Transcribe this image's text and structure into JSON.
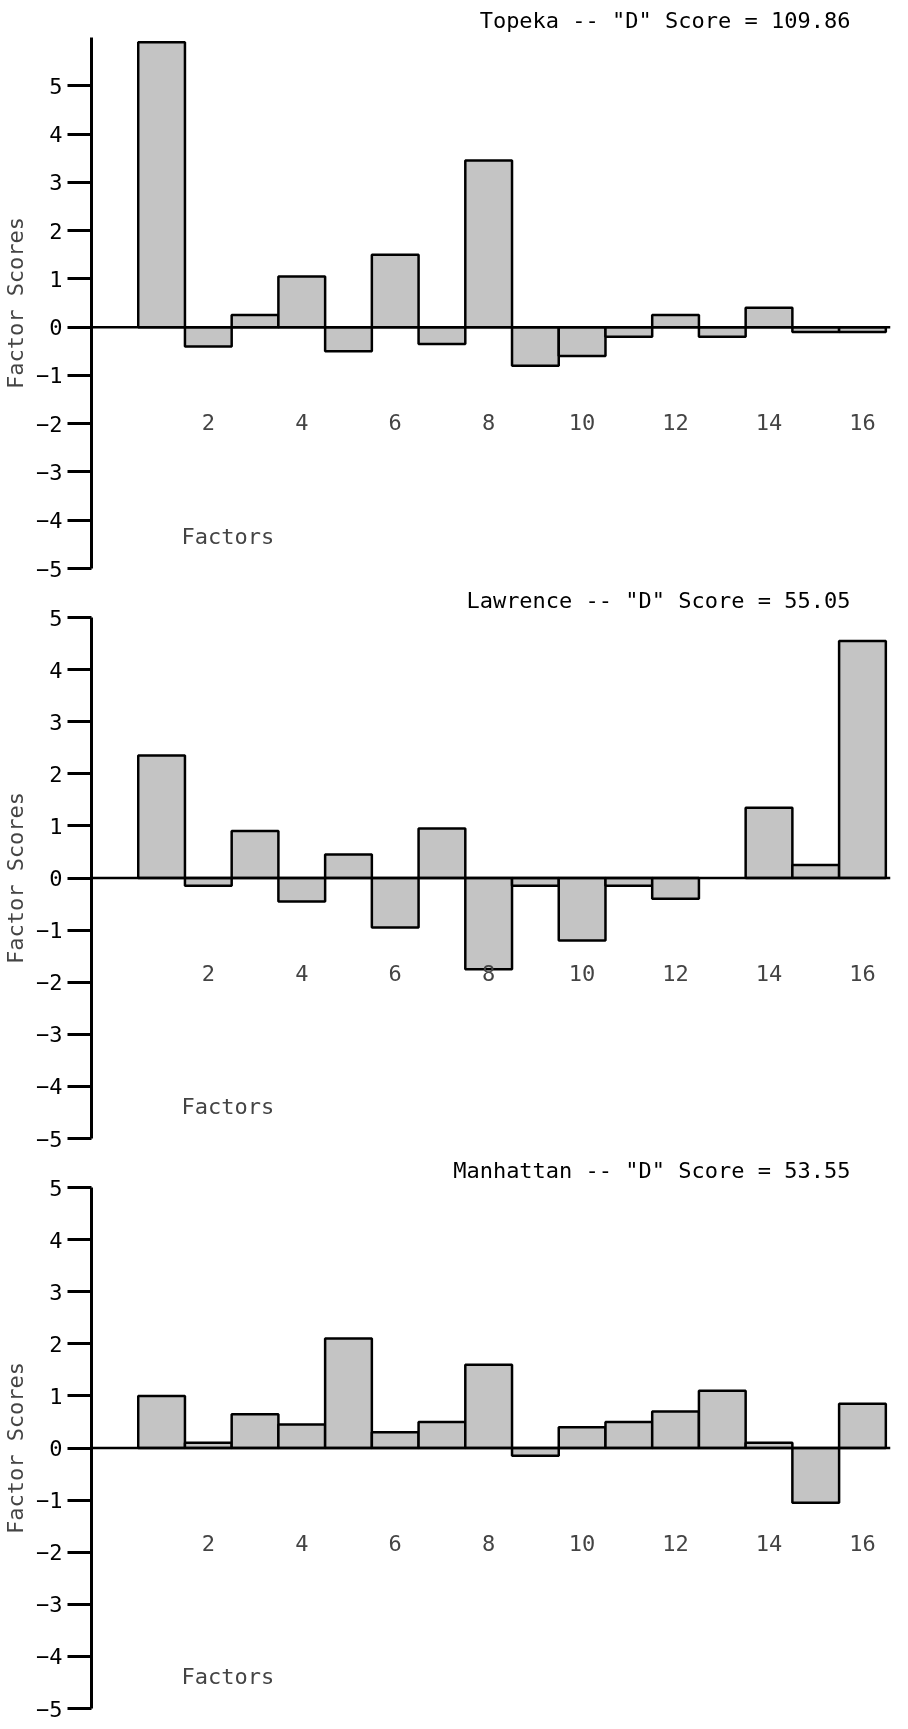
{
  "chart_data": [
    {
      "type": "bar",
      "title": "Topeka -- \"D\" Score = 109.86",
      "xlabel": "Factors",
      "ylabel": "Factor Scores",
      "categories": [
        null,
        "2",
        null,
        "4",
        null,
        "6",
        null,
        "8",
        null,
        "10",
        null,
        "12",
        null,
        "14",
        null,
        "16"
      ],
      "values": [
        5.9,
        -0.4,
        0.25,
        1.05,
        -0.5,
        1.5,
        -0.35,
        3.45,
        -0.8,
        -0.6,
        -0.2,
        0.25,
        -0.2,
        0.4,
        -0.1,
        -0.1
      ],
      "color": "#c4c4c4",
      "ylim": [
        -5,
        6
      ],
      "yticks": [
        -5,
        -4,
        -3,
        -2,
        -1,
        0,
        1,
        2,
        3,
        4,
        5
      ],
      "ref_lines": [
        {
          "axis": "y",
          "value": 0,
          "label": null
        }
      ],
      "grid": false
    },
    {
      "type": "bar",
      "title": "Lawrence -- \"D\" Score = 55.05",
      "xlabel": "Factors",
      "ylabel": "Factor Scores",
      "categories": [
        null,
        "2",
        null,
        "4",
        null,
        "6",
        null,
        "8",
        null,
        "10",
        null,
        "12",
        null,
        "14",
        null,
        "16"
      ],
      "values": [
        2.35,
        -0.15,
        0.9,
        -0.45,
        0.45,
        -0.95,
        0.95,
        -1.75,
        -0.15,
        -1.2,
        -0.15,
        -0.4,
        0,
        1.35,
        0.25,
        4.55
      ],
      "color": "#c4c4c4",
      "ylim": [
        -5,
        5
      ],
      "yticks": [
        -5,
        -4,
        -3,
        -2,
        -1,
        0,
        1,
        2,
        3,
        4,
        5
      ],
      "ref_lines": [
        {
          "axis": "y",
          "value": 0,
          "label": null
        }
      ],
      "grid": false
    },
    {
      "type": "bar",
      "title": "Manhattan -- \"D\" Score = 53.55",
      "xlabel": "Factors",
      "ylabel": "Factor Scores",
      "categories": [
        null,
        "2",
        null,
        "4",
        null,
        "6",
        null,
        "8",
        null,
        "10",
        null,
        "12",
        null,
        "14",
        null,
        "16"
      ],
      "values": [
        1.0,
        0.1,
        0.65,
        0.45,
        2.1,
        0.3,
        0.5,
        1.6,
        -0.15,
        0.4,
        0.5,
        0.7,
        1.1,
        0.1,
        -1.05,
        0.85
      ],
      "color": "#c4c4c4",
      "ylim": [
        -5,
        5
      ],
      "yticks": [
        -5,
        -4,
        -3,
        -2,
        -1,
        0,
        1,
        2,
        3,
        4,
        5
      ],
      "ref_lines": [
        {
          "axis": "y",
          "value": 0,
          "label": null
        }
      ],
      "grid": false
    }
  ]
}
